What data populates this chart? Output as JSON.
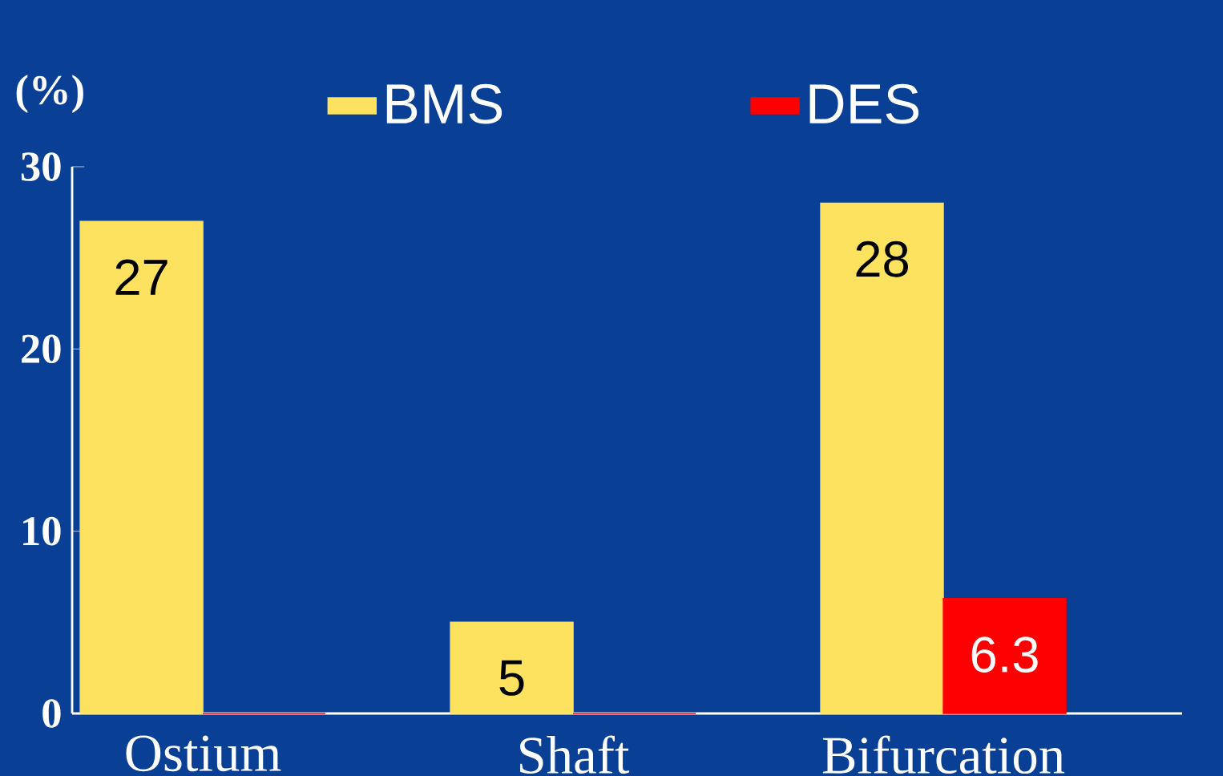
{
  "chart_data": {
    "type": "bar",
    "ylabel": "(%)",
    "categories": [
      "Ostium",
      "Shaft",
      "Bifurcation"
    ],
    "series": [
      {
        "name": "BMS",
        "color": "#fde25f",
        "values": [
          27,
          5,
          28
        ],
        "value_labels": [
          "27",
          "5",
          "28"
        ]
      },
      {
        "name": "DES",
        "color": "#ff0000",
        "values": [
          0,
          0,
          6.3
        ],
        "value_labels": [
          null,
          null,
          "6.3"
        ]
      }
    ],
    "ylim": [
      0,
      30
    ],
    "yticks": [
      0,
      10,
      20,
      30
    ],
    "legend": "top",
    "grid": false
  }
}
